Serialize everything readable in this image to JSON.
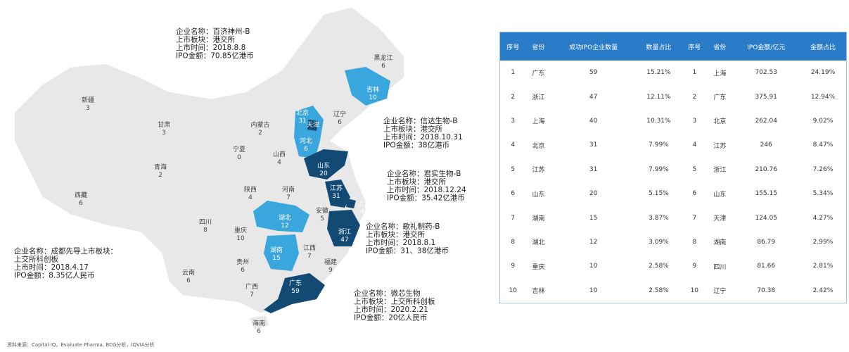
{
  "map": {
    "regions": [
      {
        "name": "黑龙江",
        "value": 6,
        "color": "#e6e6e6"
      },
      {
        "name": "吉林",
        "value": 10,
        "color": "#3aa6de"
      },
      {
        "name": "辽宁",
        "value": 6,
        "color": "#e6e6e6"
      },
      {
        "name": "新疆",
        "value": 3,
        "color": "#e6e6e6"
      },
      {
        "name": "甘肃",
        "value": 3,
        "color": "#e6e6e6"
      },
      {
        "name": "内蒙古",
        "value": 2,
        "color": "#e6e6e6"
      },
      {
        "name": "北京",
        "value": 31,
        "color": "#3aa6de"
      },
      {
        "name": "天津",
        "color": "#124a74"
      },
      {
        "name": "河北",
        "value": 6,
        "color": "#3aa6de"
      },
      {
        "name": "宁夏",
        "value": 0,
        "color": "#e6e6e6"
      },
      {
        "name": "山西",
        "value": 4,
        "color": "#e6e6e6"
      },
      {
        "name": "青海",
        "value": 2,
        "color": "#e6e6e6"
      },
      {
        "name": "山东",
        "value": 20,
        "color": "#124a74"
      },
      {
        "name": "陕西",
        "value": 4,
        "color": "#e6e6e6"
      },
      {
        "name": "河南",
        "value": 7,
        "color": "#e6e6e6"
      },
      {
        "name": "江苏",
        "value": 31,
        "color": "#124a74"
      },
      {
        "name": "上海",
        "value": 40,
        "color": "#124a74"
      },
      {
        "name": "西藏",
        "value": 6,
        "color": "#e6e6e6"
      },
      {
        "name": "安徽",
        "value": 5,
        "color": "#e6e6e6"
      },
      {
        "name": "四川",
        "value": 8,
        "color": "#e6e6e6"
      },
      {
        "name": "湖北",
        "value": 12,
        "color": "#3aa6de"
      },
      {
        "name": "重庆",
        "value": 10,
        "color": "#e6e6e6"
      },
      {
        "name": "浙江",
        "value": 47,
        "color": "#124a74"
      },
      {
        "name": "江西",
        "value": 7,
        "color": "#e6e6e6"
      },
      {
        "name": "湖南",
        "value": 15,
        "color": "#3aa6de"
      },
      {
        "name": "贵州",
        "value": 6,
        "color": "#e6e6e6"
      },
      {
        "name": "福建",
        "value": 9,
        "color": "#e6e6e6"
      },
      {
        "name": "云南",
        "value": 6,
        "color": "#e6e6e6"
      },
      {
        "name": "广西",
        "value": 7,
        "color": "#e6e6e6"
      },
      {
        "name": "广东",
        "value": 59,
        "color": "#124a74"
      },
      {
        "name": "海南",
        "value": 6,
        "color": "#e6e6e6"
      }
    ],
    "annotations": [
      [
        "企业名称：百济神州-B",
        "上市板块：港交所",
        "上市时间：2018.8.8",
        "IPO金额：70.85亿港币"
      ],
      [
        "企业名称：信达生物-B",
        "上市板块：港交所",
        "上市时间：2018.10.31",
        "IPO金额：38亿港币"
      ],
      [
        "企业名称：君实生物-B",
        "上市板块：港交所",
        "上市时间：2018.12.24",
        "IPO金额：35.42亿港币"
      ],
      [
        "企业名称：歌礼制药-B",
        "上市板块：港交所",
        "上市时间：2018.8.1",
        "IPO金额：31、38亿港币"
      ],
      [
        "企业名称：成都先导上市板块：",
        "上交所科创板",
        "上市时间：2018.4.17",
        "IPO金额：8.35亿人民币"
      ],
      [
        "企业名称：微芯生物",
        "上市板块：上交所科创板",
        "上市时间：2020.2.21",
        "IPO金额：20亿人民币"
      ]
    ]
  },
  "table": {
    "header": [
      "序号",
      "省份",
      "成功IPO企业数量",
      "数量占比",
      "序号",
      "省份",
      "IPO金额/亿元",
      "金额占比"
    ],
    "rows": [
      [
        "1",
        "广东",
        "59",
        "15.21%",
        "1",
        "上海",
        "702.53",
        "24.19%"
      ],
      [
        "2",
        "浙江",
        "47",
        "12.11%",
        "2",
        "广东",
        "375.91",
        "12.94%"
      ],
      [
        "3",
        "上海",
        "40",
        "10.31%",
        "3",
        "北京",
        "262.04",
        "9.02%"
      ],
      [
        "4",
        "北京",
        "31",
        "7.99%",
        "4",
        "江苏",
        "246",
        "8.47%"
      ],
      [
        "5",
        "江苏",
        "31",
        "7.99%",
        "5",
        "浙江",
        "210.76",
        "7.26%"
      ],
      [
        "6",
        "山东",
        "20",
        "5.15%",
        "6",
        "山东",
        "155.15",
        "5.34%"
      ],
      [
        "7",
        "湖南",
        "15",
        "3.87%",
        "7",
        "天津",
        "124.05",
        "4.27%"
      ],
      [
        "8",
        "湖北",
        "12",
        "3.09%",
        "8",
        "湖南",
        "86.79",
        "2.99%"
      ],
      [
        "9",
        "重庆",
        "10",
        "2.58%",
        "9",
        "四川",
        "81.66",
        "2.81%"
      ],
      [
        "10",
        "吉林",
        "10",
        "2.58%",
        "10",
        "辽宁",
        "70.38",
        "2.42%"
      ]
    ]
  },
  "source": "资料来源：Capital IQ，Evaluate Pharma, BCG分析，IQVIA分析"
}
